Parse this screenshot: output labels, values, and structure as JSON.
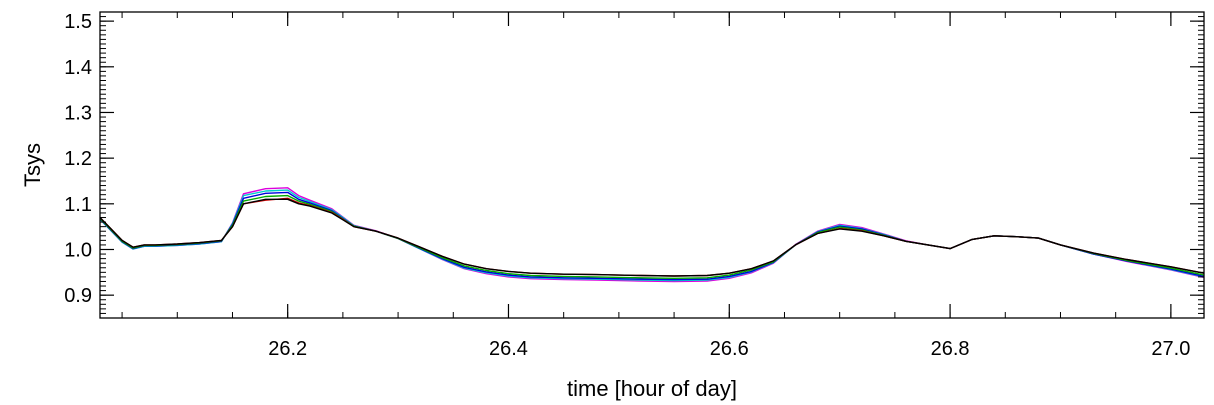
{
  "chart_data": {
    "type": "line",
    "title": "",
    "xlabel": "time [hour of day]",
    "ylabel": "Tsys",
    "xlim": [
      26.03,
      27.03
    ],
    "ylim": [
      0.85,
      1.52
    ],
    "x_ticks": [
      26.2,
      26.4,
      26.6,
      26.8,
      27.0
    ],
    "x_tick_labels": [
      "26.2",
      "26.4",
      "26.6",
      "26.8",
      "27.0"
    ],
    "y_ticks": [
      0.9,
      1.0,
      1.1,
      1.2,
      1.3,
      1.4,
      1.5
    ],
    "y_tick_labels": [
      "0.9",
      "1.0",
      "1.1",
      "1.2",
      "1.3",
      "1.4",
      "1.5"
    ],
    "grid": false,
    "colors": [
      "#000000",
      "#cc0000",
      "#00aa00",
      "#0000dd",
      "#dd00dd",
      "#00cccc"
    ],
    "x": [
      26.03,
      26.05,
      26.06,
      26.07,
      26.08,
      26.1,
      26.12,
      26.14,
      26.15,
      26.16,
      26.18,
      26.2,
      26.21,
      26.22,
      26.24,
      26.25,
      26.26,
      26.28,
      26.3,
      26.32,
      26.34,
      26.36,
      26.38,
      26.4,
      26.42,
      26.45,
      26.48,
      26.5,
      26.52,
      26.55,
      26.58,
      26.6,
      26.62,
      26.64,
      26.66,
      26.68,
      26.7,
      26.72,
      26.74,
      26.76,
      26.78,
      26.8,
      26.82,
      26.84,
      26.86,
      26.88,
      26.9,
      26.93,
      26.96,
      27.0,
      27.03
    ],
    "series": [
      {
        "values": [
          1.07,
          1.02,
          1.005,
          1.01,
          1.01,
          1.012,
          1.015,
          1.02,
          1.05,
          1.1,
          1.11,
          1.11,
          1.1,
          1.095,
          1.08,
          1.065,
          1.05,
          1.04,
          1.025,
          1.005,
          0.985,
          0.968,
          0.958,
          0.952,
          0.948,
          0.946,
          0.945,
          0.944,
          0.943,
          0.942,
          0.943,
          0.948,
          0.958,
          0.975,
          1.01,
          1.035,
          1.045,
          1.04,
          1.03,
          1.018,
          1.01,
          1.002,
          1.022,
          1.03,
          1.028,
          1.025,
          1.01,
          0.992,
          0.978,
          0.962,
          0.948
        ]
      },
      {
        "values": [
          1.07,
          1.02,
          1.005,
          1.01,
          1.01,
          1.012,
          1.015,
          1.02,
          1.05,
          1.1,
          1.108,
          1.112,
          1.102,
          1.096,
          1.081,
          1.066,
          1.05,
          1.04,
          1.025,
          1.005,
          0.985,
          0.968,
          0.958,
          0.952,
          0.948,
          0.946,
          0.945,
          0.944,
          0.943,
          0.942,
          0.943,
          0.948,
          0.958,
          0.975,
          1.01,
          1.035,
          1.046,
          1.041,
          1.03,
          1.018,
          1.01,
          1.002,
          1.022,
          1.03,
          1.028,
          1.025,
          1.01,
          0.992,
          0.978,
          0.962,
          0.948
        ]
      },
      {
        "values": [
          1.068,
          1.018,
          1.003,
          1.009,
          1.009,
          1.011,
          1.014,
          1.019,
          1.053,
          1.106,
          1.116,
          1.118,
          1.106,
          1.099,
          1.083,
          1.067,
          1.051,
          1.04,
          1.024,
          1.003,
          0.982,
          0.964,
          0.954,
          0.947,
          0.943,
          0.941,
          0.94,
          0.939,
          0.938,
          0.937,
          0.938,
          0.944,
          0.955,
          0.973,
          1.01,
          1.037,
          1.049,
          1.043,
          1.031,
          1.018,
          1.01,
          1.002,
          1.022,
          1.03,
          1.028,
          1.025,
          1.01,
          0.991,
          0.976,
          0.959,
          0.944
        ]
      },
      {
        "values": [
          1.067,
          1.017,
          1.002,
          1.008,
          1.008,
          1.01,
          1.013,
          1.018,
          1.055,
          1.112,
          1.123,
          1.125,
          1.11,
          1.102,
          1.085,
          1.068,
          1.051,
          1.04,
          1.024,
          1.002,
          0.98,
          0.961,
          0.951,
          0.944,
          0.94,
          0.938,
          0.937,
          0.936,
          0.935,
          0.934,
          0.935,
          0.941,
          0.952,
          0.972,
          1.01,
          1.038,
          1.051,
          1.045,
          1.032,
          1.018,
          1.01,
          1.002,
          1.022,
          1.03,
          1.028,
          1.025,
          1.01,
          0.99,
          0.975,
          0.957,
          0.941
        ]
      },
      {
        "values": [
          1.066,
          1.016,
          1.001,
          1.007,
          1.007,
          1.009,
          1.012,
          1.017,
          1.058,
          1.122,
          1.133,
          1.135,
          1.118,
          1.108,
          1.089,
          1.071,
          1.053,
          1.041,
          1.024,
          1.001,
          0.978,
          0.958,
          0.947,
          0.94,
          0.936,
          0.934,
          0.933,
          0.932,
          0.931,
          0.93,
          0.931,
          0.937,
          0.949,
          0.97,
          1.011,
          1.04,
          1.055,
          1.048,
          1.034,
          1.019,
          1.01,
          1.002,
          1.022,
          1.03,
          1.028,
          1.025,
          1.01,
          0.99,
          0.974,
          0.955,
          0.939
        ]
      },
      {
        "values": [
          1.066,
          1.016,
          1.001,
          1.007,
          1.007,
          1.009,
          1.012,
          1.017,
          1.057,
          1.118,
          1.128,
          1.13,
          1.114,
          1.105,
          1.087,
          1.07,
          1.052,
          1.04,
          1.024,
          1.001,
          0.979,
          0.959,
          0.949,
          0.942,
          0.938,
          0.936,
          0.935,
          0.934,
          0.933,
          0.932,
          0.933,
          0.939,
          0.951,
          0.971,
          1.01,
          1.039,
          1.053,
          1.046,
          1.033,
          1.018,
          1.01,
          1.002,
          1.022,
          1.03,
          1.028,
          1.025,
          1.01,
          0.99,
          0.975,
          0.956,
          0.94
        ]
      }
    ]
  }
}
